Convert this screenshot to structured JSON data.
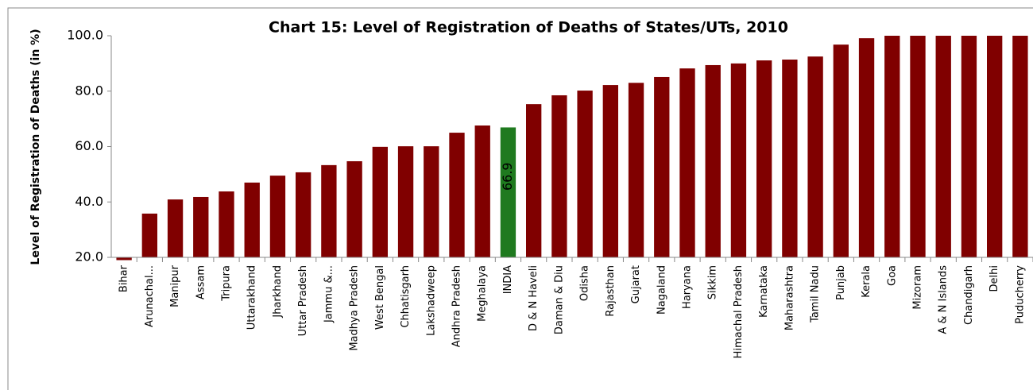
{
  "chart_data": {
    "type": "bar",
    "title": "Chart 15: Level of Registration of Deaths of States/UTs, 2010",
    "y_label": "Level of Registration of Deaths (in %)",
    "categories": [
      "Bihar",
      "Arunachal...",
      "Manipur",
      "Assam",
      "Tripura",
      "Uttarakhand",
      "Jharkhand",
      "Uttar Pradesh",
      "Jammu &...",
      "Madhya Pradesh",
      "West Bengal",
      "Chhatisgarh",
      "Lakshadweep",
      "Andhra Pradesh",
      "Meghalaya",
      "INDIA",
      "D & N Haveli",
      "Daman & Diu",
      "Odisha",
      "Rajasthan",
      "Gujarat",
      "Nagaland",
      "Haryana",
      "Sikkim",
      "Himachal Pradesh",
      "Karnataka",
      "Maharashtra",
      "Tamil Nadu",
      "Punjab",
      "Kerala",
      "Goa",
      "Mizoram",
      "A & N Islands",
      "Chandigarh",
      "Delhi",
      "Puducherry"
    ],
    "values": [
      19.0,
      35.8,
      40.9,
      41.8,
      43.8,
      47.0,
      49.5,
      50.7,
      53.3,
      54.7,
      59.9,
      60.1,
      60.1,
      65.0,
      67.6,
      66.9,
      75.3,
      78.5,
      80.2,
      82.2,
      83.0,
      85.1,
      88.2,
      89.4,
      90.0,
      91.1,
      91.4,
      92.5,
      96.8,
      99.1,
      100,
      100,
      100,
      100,
      100,
      100
    ],
    "value_labels": [
      null,
      null,
      null,
      null,
      null,
      null,
      null,
      null,
      null,
      null,
      null,
      null,
      null,
      null,
      null,
      "66.9",
      null,
      null,
      null,
      null,
      null,
      null,
      null,
      null,
      null,
      null,
      null,
      null,
      null,
      null,
      null,
      null,
      null,
      null,
      null,
      null
    ],
    "colors": [
      "#800000",
      "#800000",
      "#800000",
      "#800000",
      "#800000",
      "#800000",
      "#800000",
      "#800000",
      "#800000",
      "#800000",
      "#800000",
      "#800000",
      "#800000",
      "#800000",
      "#800000",
      "#1f7a1f",
      "#800000",
      "#800000",
      "#800000",
      "#800000",
      "#800000",
      "#800000",
      "#800000",
      "#800000",
      "#800000",
      "#800000",
      "#800000",
      "#800000",
      "#800000",
      "#800000",
      "#800000",
      "#800000",
      "#800000",
      "#800000",
      "#800000",
      "#800000"
    ],
    "ylim": [
      20,
      100
    ],
    "yticks": [
      {
        "value": 20,
        "label": "20.0"
      },
      {
        "value": 40,
        "label": "40.0"
      },
      {
        "value": 60,
        "label": "60.0"
      },
      {
        "value": 80,
        "label": "80.0"
      },
      {
        "value": 100,
        "label": "100.0"
      }
    ],
    "grid": false
  }
}
